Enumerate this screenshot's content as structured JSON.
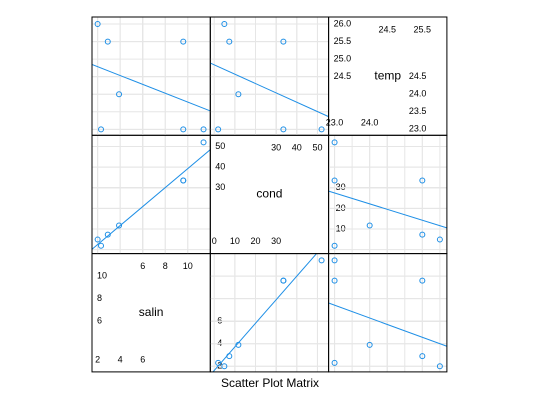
{
  "chart_data": {
    "type": "splom",
    "title": "Scatter Plot Matrix",
    "color": "#1e8fe6",
    "grid": true,
    "regression_line": true,
    "variables": [
      {
        "name": "salin",
        "values": [
          11.4,
          9.6,
          9.6,
          3.9,
          2.9,
          2.0,
          2.3
        ],
        "lim": [
          1.5,
          12
        ],
        "ticks_left": [
          6,
          8,
          10
        ],
        "ticks_top": [
          6,
          8,
          10
        ],
        "ticks_bottom": [
          2,
          4,
          6
        ],
        "ticks_right": [
          2,
          4,
          6
        ]
      },
      {
        "name": "cond",
        "values": [
          52,
          33.5,
          33.5,
          11.7,
          7.3,
          4.9,
          1.9
        ],
        "lim": [
          -1.9,
          55.4
        ],
        "ticks_left": [
          30,
          40,
          50
        ],
        "ticks_top": [
          30,
          40,
          50
        ],
        "ticks_bottom": [
          0,
          10,
          20,
          30
        ],
        "ticks_right": [
          10,
          20,
          30
        ]
      },
      {
        "name": "temp",
        "values": [
          23.0,
          23.0,
          25.5,
          24.0,
          25.5,
          26.0,
          23.0
        ],
        "lim": [
          22.83,
          26.2
        ],
        "ticks_left": [
          {
            "value": 24.5,
            "label": "24.5"
          },
          {
            "value": 25,
            "label": "25.0"
          },
          {
            "value": 25.5,
            "label": "25.5"
          },
          {
            "value": 26,
            "label": "26.0"
          }
        ],
        "ticks_top": [
          {
            "value": 24.5,
            "label": "24.5"
          },
          {
            "value": 25.5,
            "label": "25.5"
          }
        ],
        "ticks_bottom": [
          {
            "value": 23,
            "label": "23.0"
          },
          {
            "value": 24,
            "label": "24.0"
          }
        ],
        "ticks_right": [
          {
            "value": 23,
            "label": "23.0"
          },
          {
            "value": 23.5,
            "label": "23.5"
          },
          {
            "value": 24,
            "label": "24.0"
          },
          {
            "value": 24.5,
            "label": "24.5"
          }
        ]
      }
    ]
  }
}
